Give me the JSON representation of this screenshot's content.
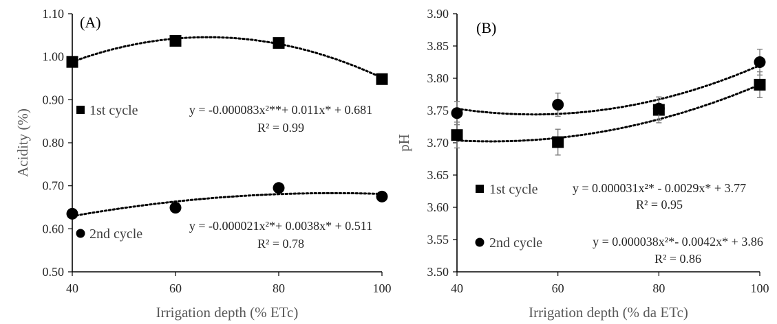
{
  "chart_data": [
    {
      "type": "scatter",
      "panel_label": "(A)",
      "xlabel": "Irrigation depth (% ETc)",
      "ylabel": "Acidity (%)",
      "xlim": [
        40,
        100
      ],
      "ylim": [
        0.5,
        1.1
      ],
      "x_ticks": [
        "40",
        "60",
        "80",
        "100"
      ],
      "y_ticks": [
        "0.50",
        "0.60",
        "0.70",
        "0.80",
        "0.90",
        "1.00",
        "1.10"
      ],
      "x": [
        40,
        60,
        80,
        100
      ],
      "grid": false,
      "series": [
        {
          "name": "1st cycle",
          "marker": "square",
          "values": [
            0.988,
            1.037,
            1.032,
            0.948
          ],
          "error": [
            0,
            0,
            0,
            0
          ],
          "trendline": {
            "type": "quadratic",
            "coefficients": [
              0.681,
              0.011,
              -8.3e-05
            ]
          },
          "equation": "y = -0.000083x²**+ 0.011x* + 0.681",
          "r2": "R² = 0.99"
        },
        {
          "name": "2nd cycle",
          "marker": "circle",
          "values": [
            0.635,
            0.649,
            0.695,
            0.675
          ],
          "error": [
            0,
            0,
            0,
            0
          ],
          "trendline": {
            "type": "quadratic",
            "coefficients": [
              0.511,
              0.0038,
              -2.1e-05
            ]
          },
          "equation": "y = -0.000021x²*+ 0.0038x* + 0.511",
          "r2": "R² = 0.78"
        }
      ]
    },
    {
      "type": "scatter",
      "panel_label": "(B)",
      "xlabel": "Irrigation depth (% da ETc)",
      "ylabel": "pH",
      "xlim": [
        40,
        100
      ],
      "ylim": [
        3.5,
        3.9
      ],
      "x_ticks": [
        "40",
        "60",
        "80",
        "100"
      ],
      "y_ticks": [
        "3.50",
        "3.55",
        "3.60",
        "3.65",
        "3.70",
        "3.75",
        "3.80",
        "3.85",
        "3.90"
      ],
      "x": [
        40,
        60,
        80,
        100
      ],
      "grid": false,
      "series": [
        {
          "name": "1st cycle",
          "marker": "square",
          "values": [
            3.712,
            3.701,
            3.751,
            3.79
          ],
          "error": [
            0.02,
            0.02,
            0.02,
            0.02
          ],
          "trendline": {
            "type": "quadratic",
            "coefficients": [
              3.77,
              -0.0029,
              3.1e-05
            ]
          },
          "equation": "y = 0.000031x²* - 0.0029x* + 3.77",
          "r2": "R² = 0.95"
        },
        {
          "name": "2nd cycle",
          "marker": "circle",
          "values": [
            3.746,
            3.759,
            3.753,
            3.825
          ],
          "error": [
            0.018,
            0.018,
            0.018,
            0.02
          ],
          "trendline": {
            "type": "quadratic",
            "coefficients": [
              3.86,
              -0.0042,
              3.8e-05
            ]
          },
          "equation": "y = 0.000038x²*- 0.0042x* + 3.86",
          "r2": "R² = 0.86"
        }
      ]
    }
  ]
}
